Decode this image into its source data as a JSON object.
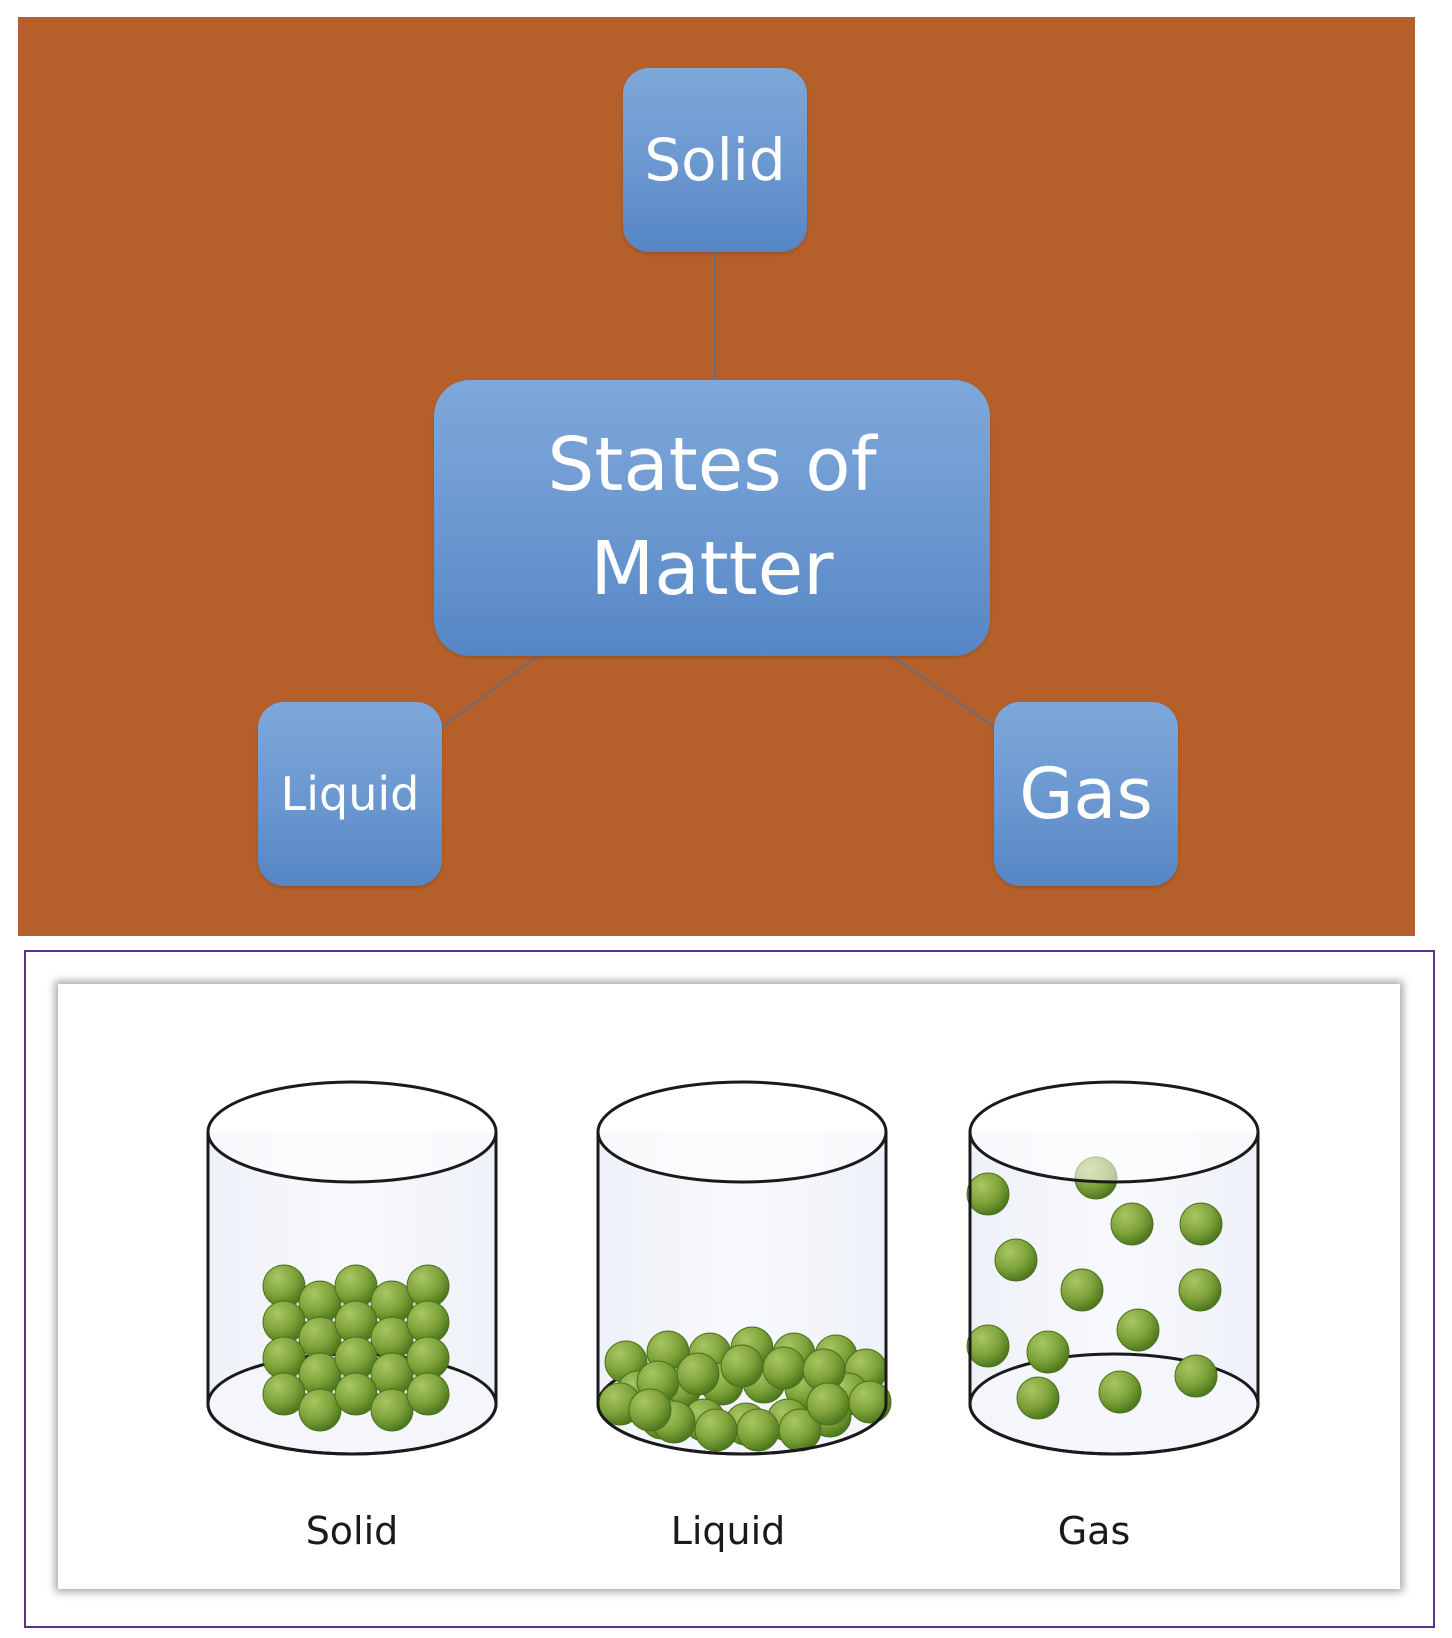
{
  "concept_map": {
    "center": [
      "States of",
      "Matter"
    ],
    "solid": "Solid",
    "liquid": "Liquid",
    "gas": "Gas"
  },
  "containers": {
    "solid_label": "Solid",
    "liquid_label": "Liquid",
    "gas_label": "Gas"
  },
  "colors": {
    "panel_background": "#b5602a",
    "node_fill": "#6b97d0",
    "particle": "#7fa33a",
    "frame_border": "#5b2f8a"
  }
}
